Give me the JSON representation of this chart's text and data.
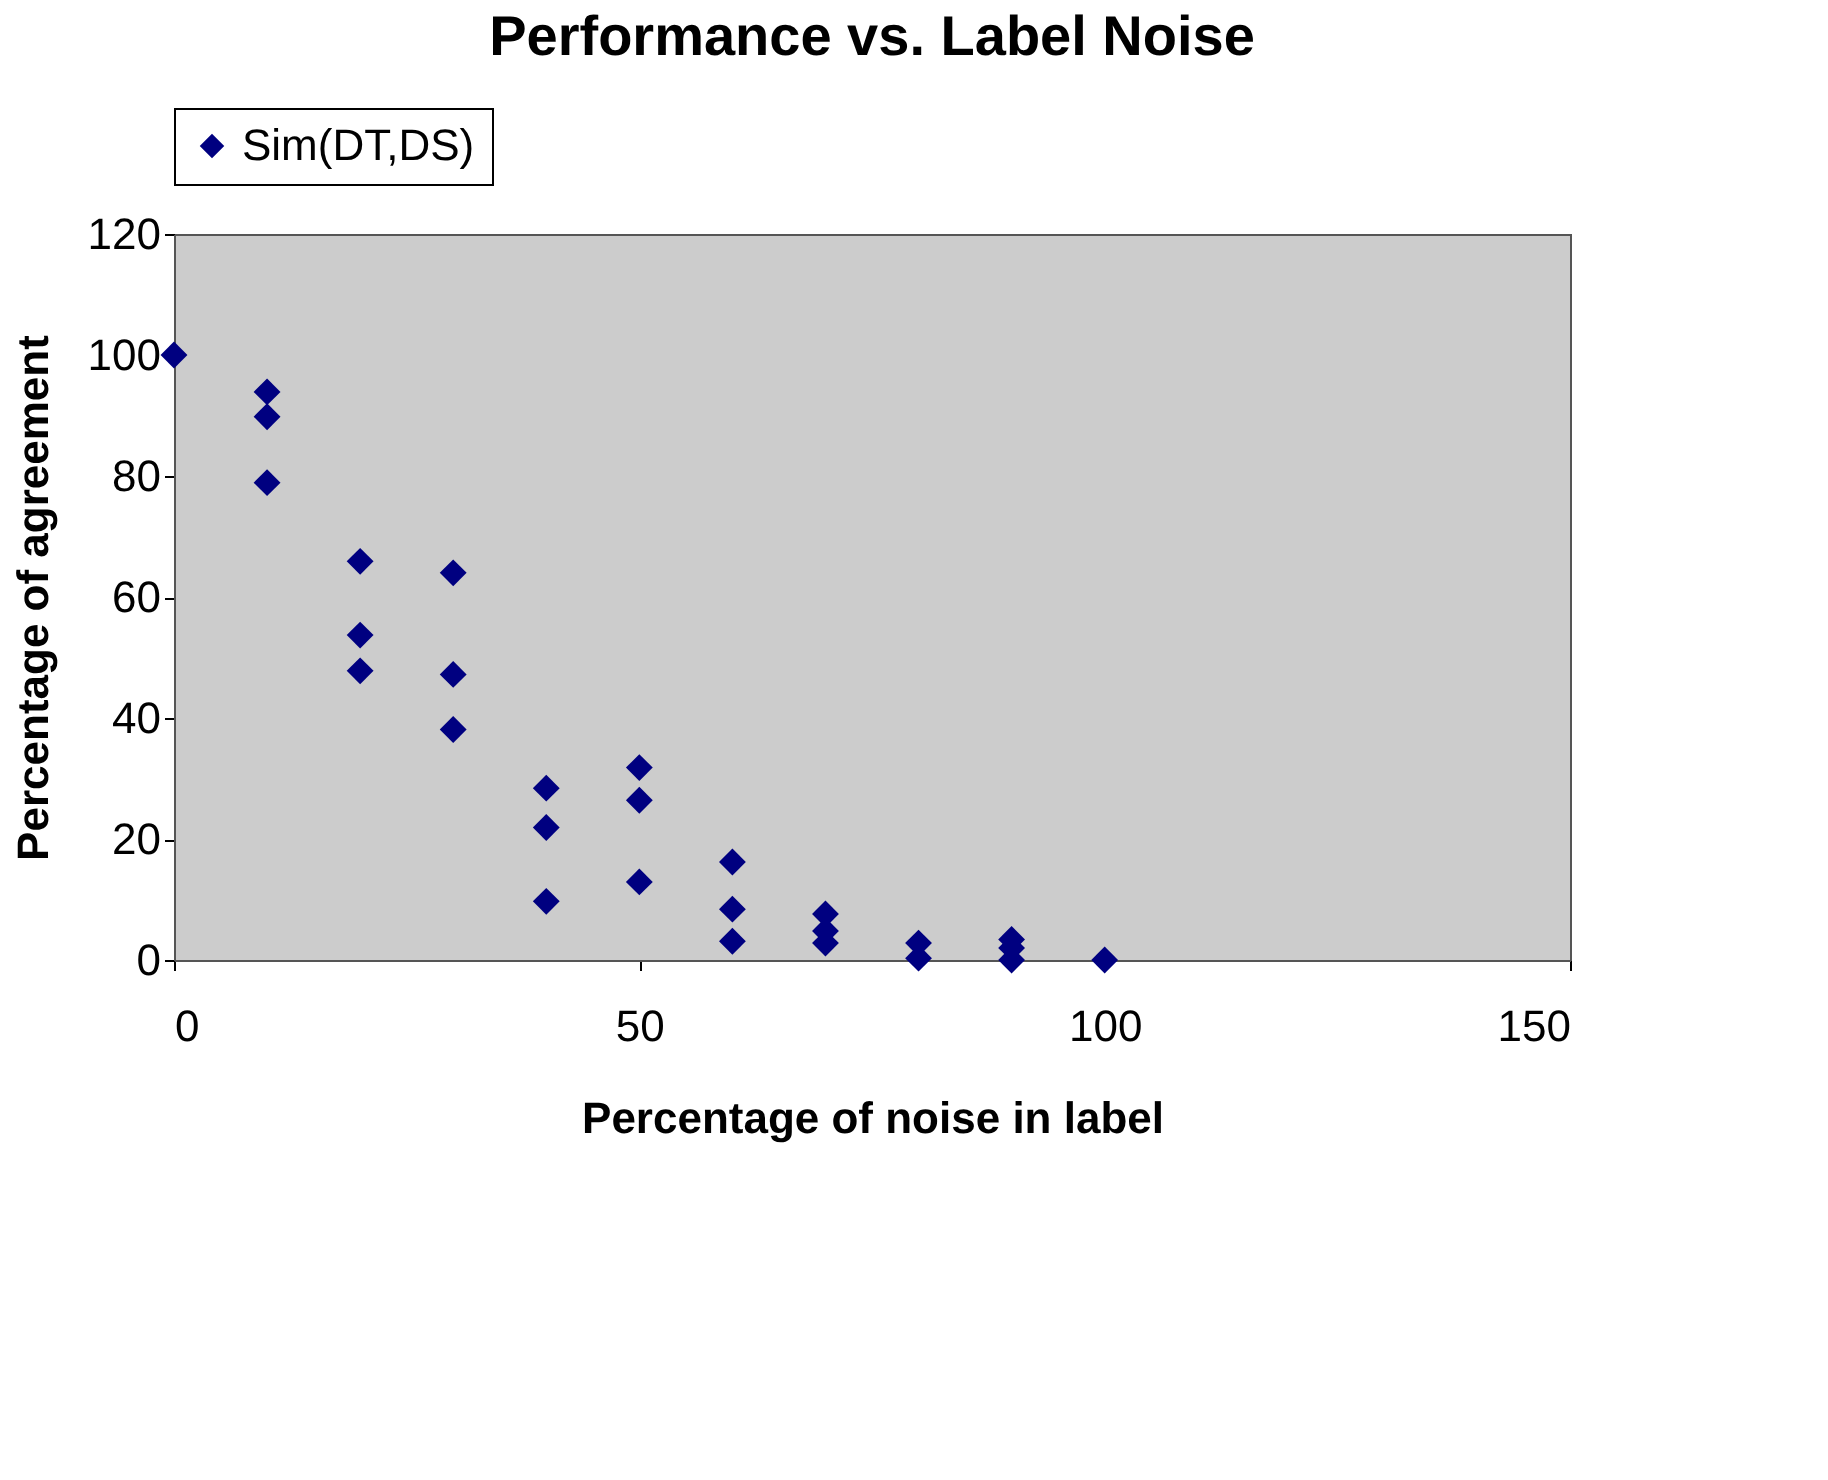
{
  "chart_data": {
    "type": "scatter",
    "title": "Performance vs. Label Noise",
    "xlabel": "Percentage of noise in label",
    "ylabel": "Percentage of agreement",
    "series": [
      {
        "name": "Sim(DT,DS)",
        "color": "#000080",
        "x": [
          0,
          10,
          10,
          10,
          20,
          20,
          20,
          30,
          30,
          30,
          40,
          40,
          40,
          50,
          50,
          50,
          60,
          60,
          60,
          70,
          70,
          70,
          80,
          80,
          90,
          90,
          90,
          100
        ],
        "values": [
          100,
          93.9,
          89.8,
          78.9,
          65.9,
          53.7,
          47.8,
          64,
          47.2,
          38.1,
          28.4,
          21.9,
          9.7,
          31.8,
          26.4,
          12.9,
          16.2,
          8.4,
          3.1,
          7.6,
          4.8,
          2.8,
          2.8,
          0.3,
          3.4,
          2,
          0,
          0
        ]
      }
    ],
    "xlim": [
      0,
      150
    ],
    "xticks": [
      0,
      50,
      100,
      150
    ],
    "ylim": [
      0,
      120
    ],
    "yticks": [
      0,
      20,
      40,
      60,
      80,
      100,
      120
    ],
    "marker": "diamond",
    "legend": "top",
    "grid": false
  }
}
